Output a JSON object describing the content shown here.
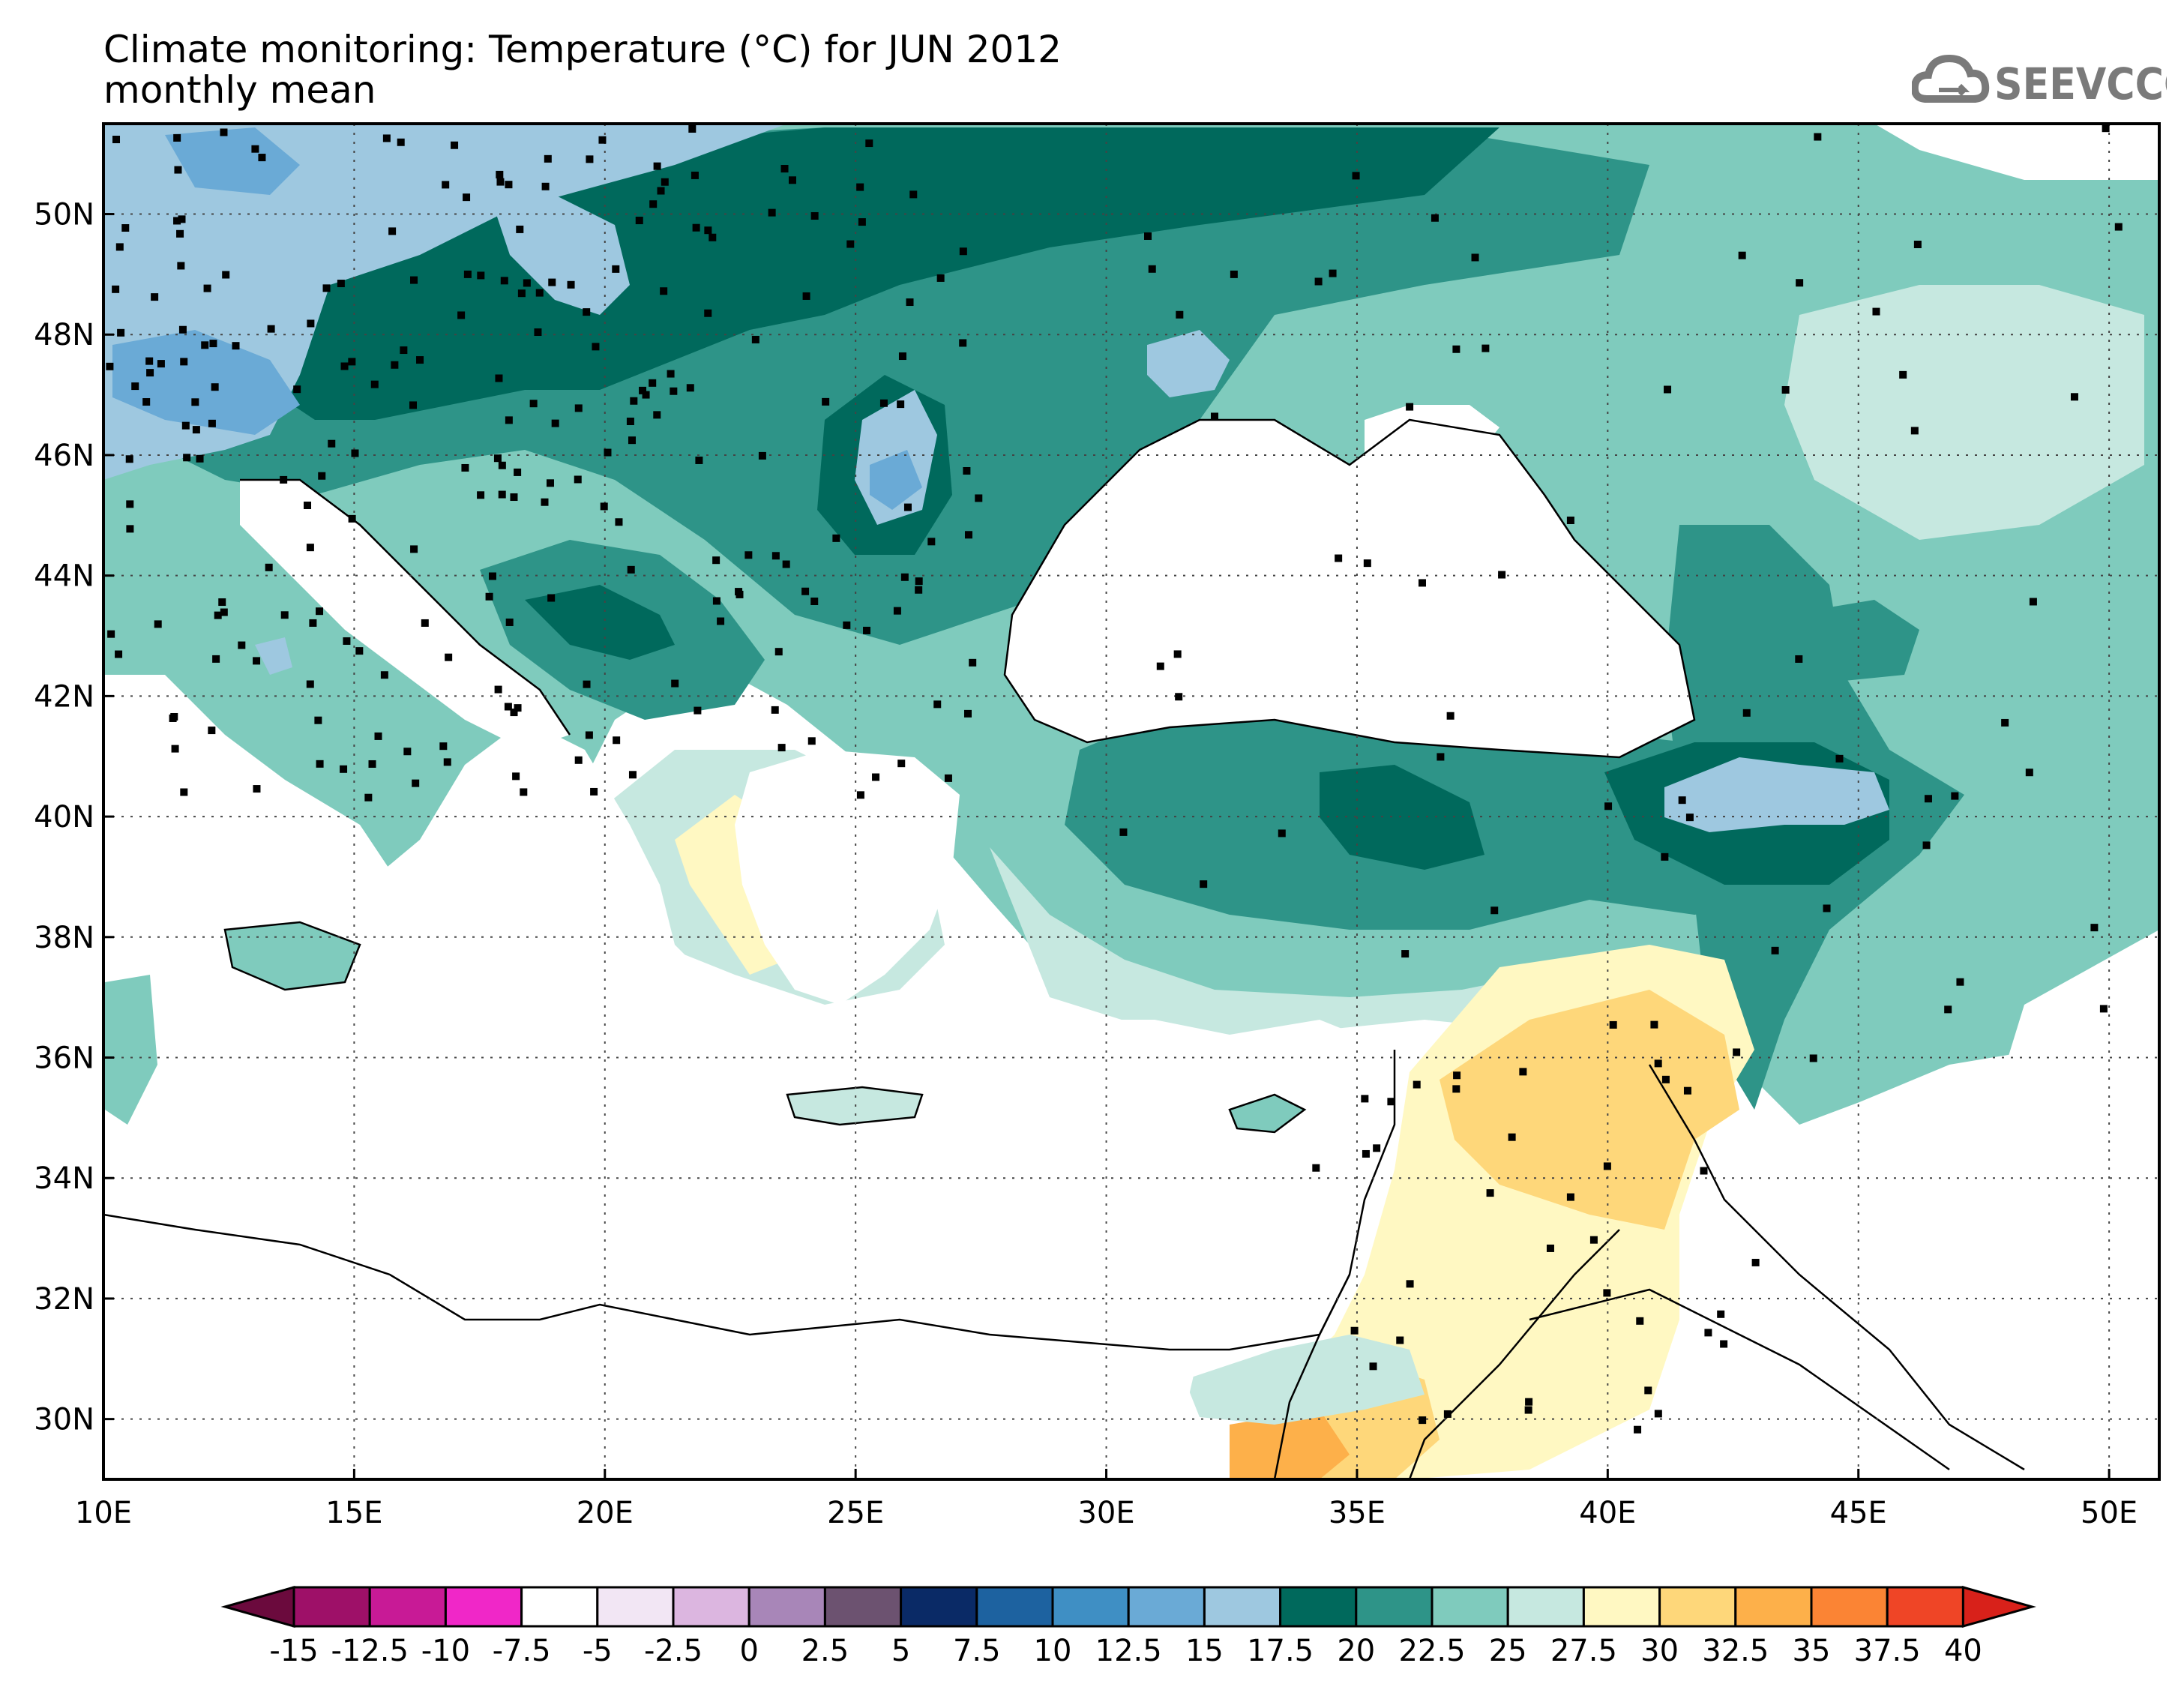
{
  "title": {
    "line1": "Climate monitoring: Temperature (°C) for JUN 2012",
    "line2": "monthly mean"
  },
  "logo": {
    "text": "SEEVCCC",
    "icon": "cloud-logo-icon"
  },
  "map": {
    "lon_range": [
      10,
      51
    ],
    "lat_range": [
      29,
      51.5
    ],
    "lon_ticks": [
      10,
      15,
      20,
      25,
      30,
      35,
      40,
      45,
      50
    ],
    "lon_tick_labels": [
      "10E",
      "15E",
      "20E",
      "25E",
      "30E",
      "35E",
      "40E",
      "45E",
      "50E"
    ],
    "lat_ticks": [
      30,
      32,
      34,
      36,
      38,
      40,
      42,
      44,
      46,
      48,
      50
    ],
    "lat_tick_labels": [
      "30N",
      "32N",
      "34N",
      "36N",
      "38N",
      "40N",
      "42N",
      "44N",
      "46N",
      "48N",
      "50N"
    ],
    "grid": true
  },
  "colorbar": {
    "labels": [
      "-15",
      "-12.5",
      "-10",
      "-7.5",
      "-5",
      "-2.5",
      "0",
      "2.5",
      "5",
      "7.5",
      "10",
      "12.5",
      "15",
      "17.5",
      "20",
      "22.5",
      "25",
      "27.5",
      "30",
      "32.5",
      "35",
      "37.5",
      "40"
    ],
    "colors": [
      "#6b0a3d",
      "#9e1068",
      "#c81a96",
      "#f027c8",
      "#ffffff",
      "#f2e6f4",
      "#dcb6e0",
      "#a886b8",
      "#6c5270",
      "#0a2a66",
      "#1d62a0",
      "#3f8fc4",
      "#6aaad6",
      "#9ec8e0",
      "#00695c",
      "#2e9488",
      "#7fcbbd",
      "#c6e8e0",
      "#fff8c2",
      "#fed77a",
      "#fdb04a",
      "#fb8434",
      "#ef4526",
      "#d8211a"
    ],
    "extend": "both"
  },
  "stations": {
    "description_hidden": true
  }
}
